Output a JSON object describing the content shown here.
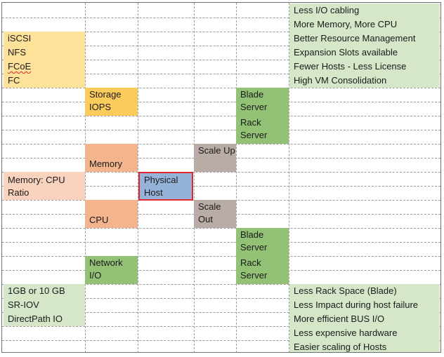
{
  "colors": {
    "yellow": "#fbcc5b",
    "light_yellow": "#ffe299",
    "orange": "#f4b48e",
    "light_orange": "#f9d3bd",
    "green": "#93c277",
    "light_green": "#d6e7c9",
    "gray": "#b9aca6",
    "blue": "#95b3d8",
    "highlight_border": "#e0272d"
  },
  "benefits_top": [
    "Less I/O cabling",
    "More Memory, More CPU",
    "Better Resource Management",
    "Expansion Slots available",
    "Fewer Hosts - Less License",
    "High VM Consolidation"
  ],
  "storage_protocols": [
    "iSCSI",
    "NFS",
    "FCoE",
    "FC"
  ],
  "nodes": {
    "storage_iops": "Storage IOPS",
    "memory": "Memory",
    "memory_cpu_ratio": "Memory: CPU Ratio",
    "physical_host": "Physical Host",
    "cpu": "CPU",
    "network_io": "Network I/O",
    "scale_up": "Scale Up",
    "scale_out": "Scale Out",
    "blade_server_top": "Blade Server",
    "rack_server_top": "Rack Server",
    "blade_server_bottom": "Blade Server",
    "rack_server_bottom": "Rack Server"
  },
  "network_options": [
    "1GB or 10 GB",
    "SR-IOV",
    "DirectPath IO"
  ],
  "benefits_bottom": [
    "Less Rack Space (Blade)",
    "Less Impact during host failure",
    "More efficient BUS I/O",
    "Less expensive hardware",
    "Easier scaling of Hosts"
  ]
}
